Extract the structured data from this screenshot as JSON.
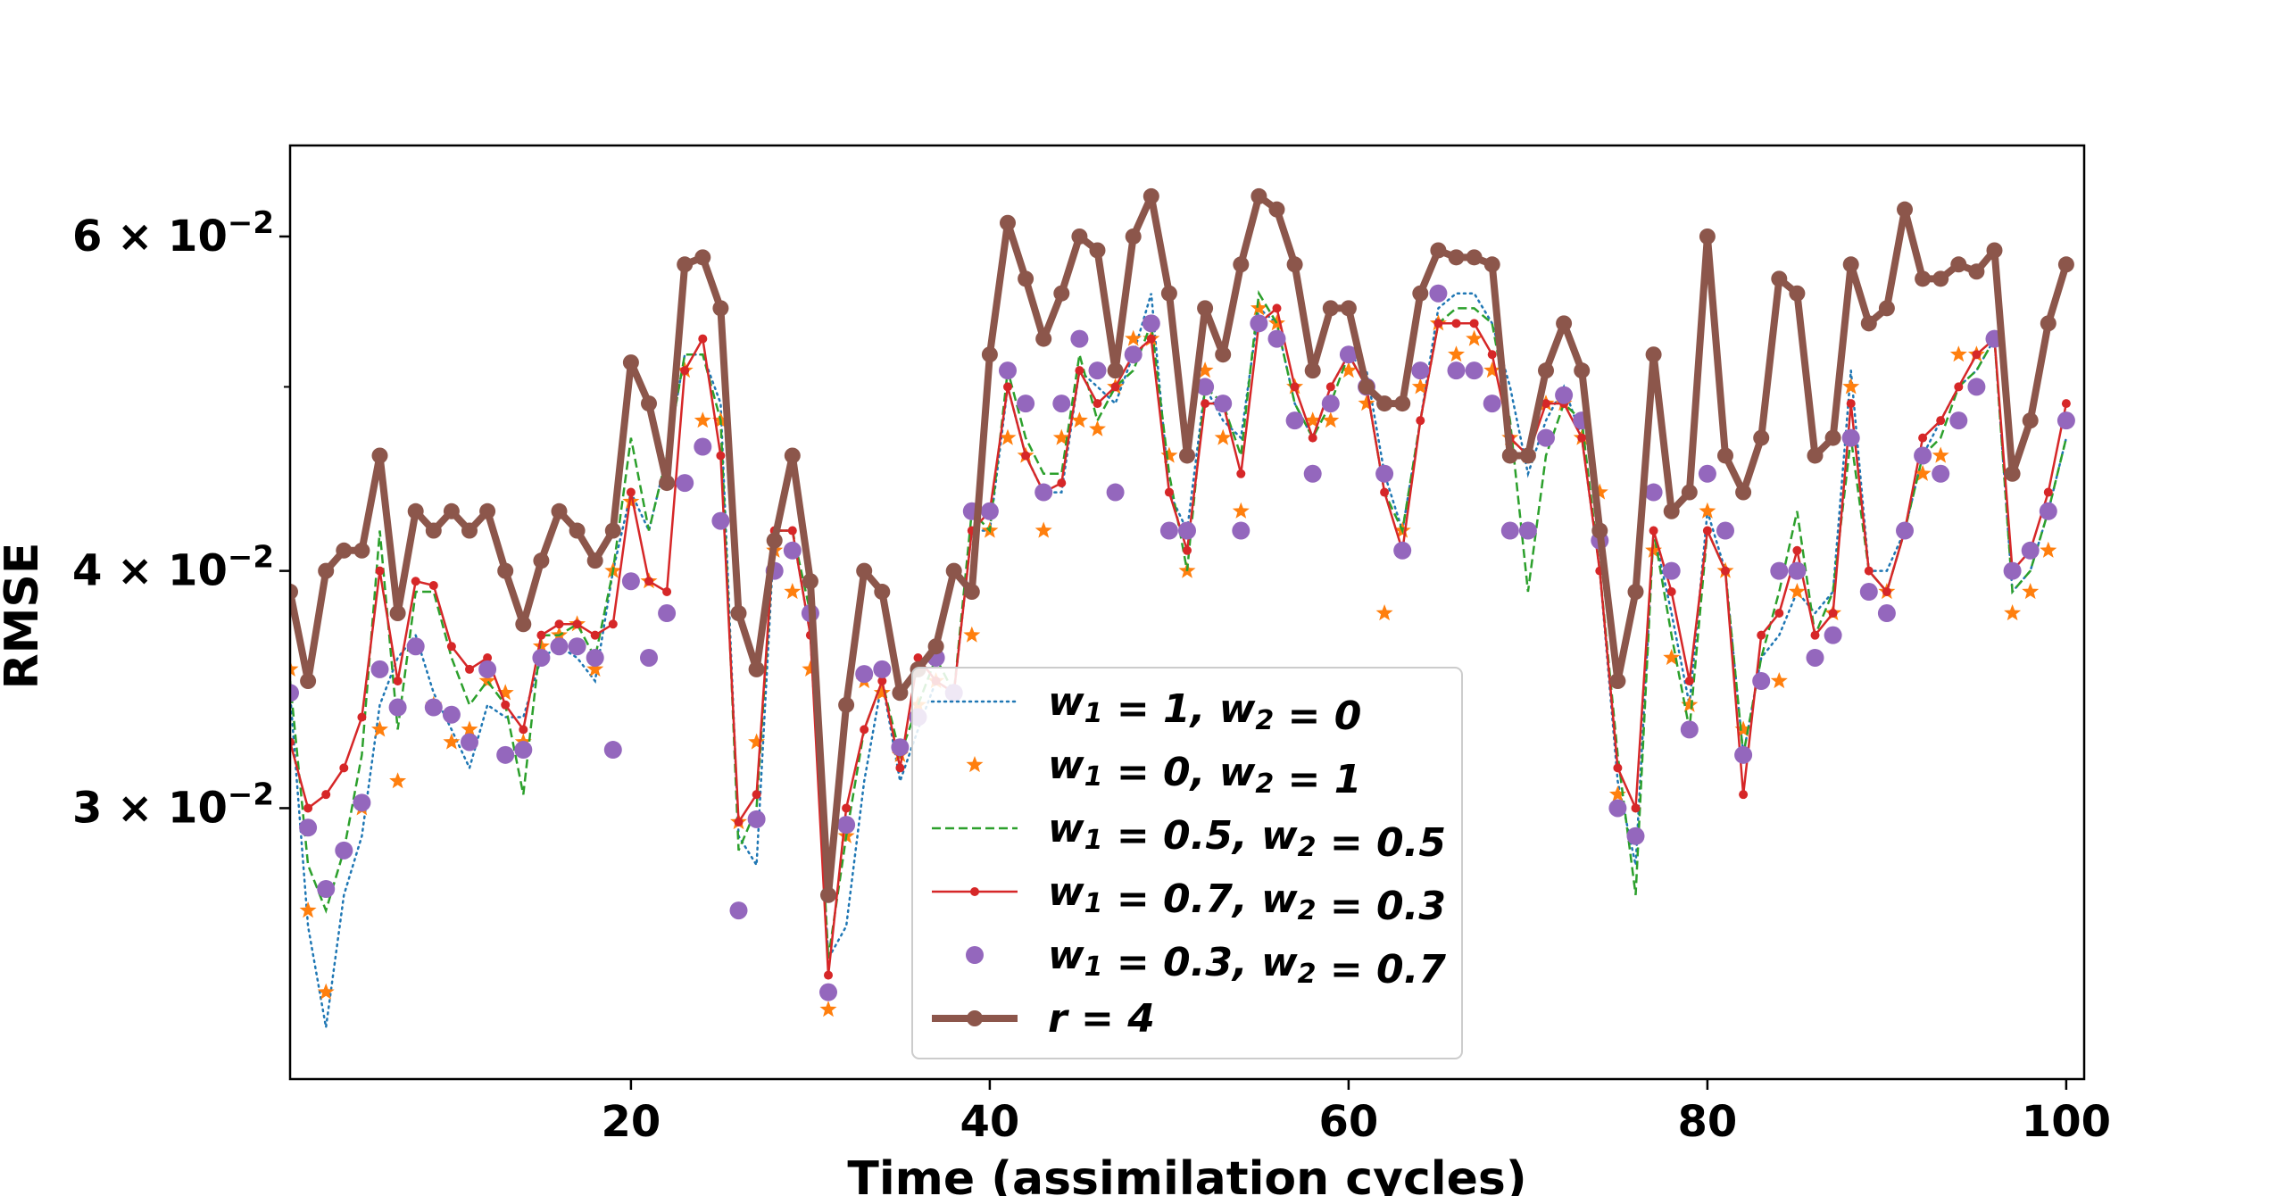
{
  "chart_data": {
    "type": "line",
    "title": "",
    "xlabel": "Time (assimilation cycles)",
    "ylabel": "RMSE",
    "yscale": "log",
    "xlim": [
      1,
      101
    ],
    "ylim": [
      0.0216,
      0.067
    ],
    "x": [
      1,
      2,
      3,
      4,
      5,
      6,
      7,
      8,
      9,
      10,
      11,
      12,
      13,
      14,
      15,
      16,
      17,
      18,
      19,
      20,
      21,
      22,
      23,
      24,
      25,
      26,
      27,
      28,
      29,
      30,
      31,
      32,
      33,
      34,
      35,
      36,
      37,
      38,
      39,
      40,
      41,
      42,
      43,
      44,
      45,
      46,
      47,
      48,
      49,
      50,
      51,
      52,
      53,
      54,
      55,
      56,
      57,
      58,
      59,
      60,
      61,
      62,
      63,
      64,
      65,
      66,
      67,
      68,
      69,
      70,
      71,
      72,
      73,
      74,
      75,
      76,
      77,
      78,
      79,
      80,
      81,
      82,
      83,
      84,
      85,
      86,
      87,
      88,
      89,
      90,
      91,
      92,
      93,
      94,
      95,
      96,
      97,
      98,
      99,
      100
    ],
    "x_ticks": [
      20,
      40,
      60,
      80,
      100
    ],
    "x_tick_labels": [
      "20",
      "40",
      "60",
      "80",
      "100"
    ],
    "y_ticks_major": [
      0.03,
      0.04,
      0.06
    ],
    "y_tick_labels": [
      "3 × 10",
      "4 × 10",
      "6 × 10"
    ],
    "y_tick_exponent": "−2",
    "y_ticks_minor": [
      0.05
    ],
    "legend_position": "lower-center",
    "series": [
      {
        "name": "w1=1, w2=0",
        "label_parts": [
          "w",
          "1",
          " = 1, ",
          "w",
          "2",
          " = 0"
        ],
        "style": "dotted",
        "color": "#1f77b4",
        "values": [
          0.0345,
          0.026,
          0.023,
          0.027,
          0.029,
          0.034,
          0.036,
          0.037,
          0.0345,
          0.033,
          0.0315,
          0.034,
          0.0335,
          0.0335,
          0.036,
          0.0365,
          0.036,
          0.035,
          0.04,
          0.044,
          0.042,
          0.046,
          0.052,
          0.052,
          0.049,
          0.029,
          0.028,
          0.042,
          0.042,
          0.037,
          0.025,
          0.026,
          0.031,
          0.035,
          0.031,
          0.033,
          0.035,
          0.0345,
          0.042,
          0.042,
          0.05,
          0.046,
          0.044,
          0.044,
          0.051,
          0.05,
          0.049,
          0.052,
          0.056,
          0.044,
          0.042,
          0.05,
          0.048,
          0.047,
          0.055,
          0.054,
          0.049,
          0.047,
          0.05,
          0.052,
          0.051,
          0.045,
          0.042,
          0.048,
          0.055,
          0.056,
          0.056,
          0.054,
          0.05,
          0.045,
          0.048,
          0.05,
          0.047,
          0.04,
          0.031,
          0.028,
          0.042,
          0.038,
          0.034,
          0.043,
          0.04,
          0.032,
          0.036,
          0.037,
          0.039,
          0.038,
          0.039,
          0.051,
          0.04,
          0.04,
          0.042,
          0.046,
          0.048,
          0.05,
          0.051,
          0.053,
          0.039,
          0.04,
          0.043,
          0.047
        ]
      },
      {
        "name": "w1=0, w2=1",
        "label_parts": [
          "w",
          "1",
          " = 0, ",
          "w",
          "2",
          " = 1"
        ],
        "style": "star",
        "color": "#ff7f0e",
        "values": [
          0.0355,
          0.0265,
          0.024,
          0.0285,
          0.03,
          0.033,
          0.031,
          0.0365,
          0.034,
          0.0325,
          0.033,
          0.035,
          0.0345,
          0.0325,
          0.0365,
          0.037,
          0.0375,
          0.0355,
          0.04,
          0.0435,
          0.0395,
          0.038,
          0.051,
          0.048,
          0.048,
          0.0295,
          0.0325,
          0.041,
          0.039,
          0.0355,
          0.0235,
          0.029,
          0.035,
          0.0345,
          0.032,
          0.034,
          0.035,
          0.0345,
          0.037,
          0.042,
          0.047,
          0.046,
          0.042,
          0.047,
          0.048,
          0.0475,
          0.05,
          0.053,
          0.053,
          0.046,
          0.04,
          0.051,
          0.047,
          0.043,
          0.055,
          0.054,
          0.05,
          0.048,
          0.048,
          0.051,
          0.049,
          0.038,
          0.042,
          0.05,
          0.054,
          0.052,
          0.053,
          0.051,
          0.047,
          0.046,
          0.049,
          0.049,
          0.047,
          0.044,
          0.0305,
          0.029,
          0.041,
          0.036,
          0.034,
          0.043,
          0.04,
          0.033,
          0.035,
          0.035,
          0.039,
          0.036,
          0.038,
          0.05,
          0.039,
          0.039,
          0.042,
          0.045,
          0.046,
          0.052,
          0.052,
          0.053,
          0.038,
          0.039,
          0.041,
          0.048
        ]
      },
      {
        "name": "w1=0.5, w2=0.5",
        "label_parts": [
          "w",
          "1",
          " = 0.5, ",
          "w",
          "2",
          " = 0.5"
        ],
        "style": "dashed",
        "color": "#2ca02c",
        "values": [
          0.035,
          0.028,
          0.0265,
          0.0285,
          0.032,
          0.042,
          0.033,
          0.039,
          0.039,
          0.036,
          0.034,
          0.035,
          0.034,
          0.0305,
          0.037,
          0.037,
          0.0375,
          0.036,
          0.04,
          0.047,
          0.042,
          0.046,
          0.052,
          0.052,
          0.048,
          0.0285,
          0.03,
          0.042,
          0.042,
          0.038,
          0.025,
          0.029,
          0.033,
          0.035,
          0.032,
          0.034,
          0.036,
          0.0345,
          0.043,
          0.042,
          0.051,
          0.047,
          0.045,
          0.045,
          0.052,
          0.048,
          0.05,
          0.051,
          0.054,
          0.045,
          0.04,
          0.05,
          0.049,
          0.046,
          0.056,
          0.054,
          0.049,
          0.047,
          0.049,
          0.052,
          0.05,
          0.044,
          0.042,
          0.048,
          0.054,
          0.055,
          0.055,
          0.054,
          0.048,
          0.039,
          0.046,
          0.049,
          0.048,
          0.04,
          0.032,
          0.027,
          0.042,
          0.037,
          0.033,
          0.042,
          0.04,
          0.032,
          0.036,
          0.039,
          0.043,
          0.037,
          0.039,
          0.047,
          0.04,
          0.039,
          0.042,
          0.046,
          0.047,
          0.05,
          0.051,
          0.053,
          0.039,
          0.04,
          0.043,
          0.047
        ]
      },
      {
        "name": "w1=0.7, w2=0.3",
        "label_parts": [
          "w",
          "1",
          " = 0.7, ",
          "w",
          "2",
          " = 0.3"
        ],
        "style": "line-dot",
        "color": "#d62728",
        "values": [
          0.0325,
          0.03,
          0.0305,
          0.0315,
          0.0335,
          0.04,
          0.035,
          0.0395,
          0.0393,
          0.0365,
          0.0355,
          0.036,
          0.034,
          0.033,
          0.037,
          0.0375,
          0.0375,
          0.037,
          0.0375,
          0.044,
          0.0395,
          0.039,
          0.051,
          0.053,
          0.046,
          0.0295,
          0.0305,
          0.042,
          0.042,
          0.037,
          0.0245,
          0.03,
          0.033,
          0.035,
          0.0315,
          0.036,
          0.035,
          0.0345,
          0.042,
          0.043,
          0.05,
          0.046,
          0.044,
          0.0445,
          0.051,
          0.049,
          0.05,
          0.052,
          0.053,
          0.044,
          0.041,
          0.049,
          0.049,
          0.045,
          0.054,
          0.055,
          0.05,
          0.047,
          0.05,
          0.052,
          0.05,
          0.044,
          0.041,
          0.048,
          0.054,
          0.054,
          0.054,
          0.052,
          0.047,
          0.046,
          0.049,
          0.049,
          0.047,
          0.04,
          0.0315,
          0.03,
          0.042,
          0.039,
          0.035,
          0.042,
          0.04,
          0.0305,
          0.037,
          0.038,
          0.041,
          0.037,
          0.038,
          0.049,
          0.04,
          0.039,
          0.042,
          0.047,
          0.048,
          0.05,
          0.052,
          0.053,
          0.04,
          0.041,
          0.044,
          0.049
        ]
      },
      {
        "name": "w1=0.3, w2=0.7",
        "label_parts": [
          "w",
          "1",
          " = 0.3, ",
          "w",
          "2",
          " = 0.7"
        ],
        "style": "dot",
        "color": "#9467bd",
        "values": [
          0.0345,
          0.0293,
          0.0272,
          0.0285,
          0.0302,
          0.0355,
          0.0339,
          0.0365,
          0.0339,
          0.0336,
          0.0325,
          0.0355,
          0.032,
          0.0322,
          0.036,
          0.0365,
          0.0365,
          0.036,
          0.0322,
          0.0395,
          0.036,
          0.038,
          0.0445,
          0.0465,
          0.0425,
          0.0265,
          0.0296,
          0.04,
          0.041,
          0.038,
          0.024,
          0.0294,
          0.0353,
          0.0355,
          0.0323,
          0.0335,
          0.036,
          0.0345,
          0.043,
          0.043,
          0.051,
          0.049,
          0.044,
          0.049,
          0.053,
          0.051,
          0.044,
          0.052,
          0.054,
          0.042,
          0.042,
          0.05,
          0.049,
          0.042,
          0.054,
          0.053,
          0.048,
          0.045,
          0.049,
          0.052,
          0.05,
          0.045,
          0.041,
          0.051,
          0.056,
          0.051,
          0.051,
          0.049,
          0.042,
          0.042,
          0.047,
          0.0495,
          0.048,
          0.0415,
          0.03,
          0.029,
          0.044,
          0.04,
          0.033,
          0.045,
          0.042,
          0.032,
          0.035,
          0.04,
          0.04,
          0.036,
          0.037,
          0.047,
          0.039,
          0.038,
          0.042,
          0.046,
          0.045,
          0.048,
          0.05,
          0.053,
          0.04,
          0.041,
          0.043,
          0.048
        ]
      },
      {
        "name": "r=4",
        "label_parts": [
          "r",
          "",
          " = 4",
          "",
          "",
          ""
        ],
        "style": "thick-line-dot",
        "color": "#8c564b",
        "values": [
          0.039,
          0.035,
          0.04,
          0.041,
          0.041,
          0.046,
          0.038,
          0.043,
          0.042,
          0.043,
          0.042,
          0.043,
          0.04,
          0.0375,
          0.0405,
          0.043,
          0.042,
          0.0405,
          0.042,
          0.0515,
          0.049,
          0.0445,
          0.058,
          0.0585,
          0.055,
          0.038,
          0.0355,
          0.0415,
          0.046,
          0.0395,
          0.027,
          0.034,
          0.04,
          0.039,
          0.0345,
          0.0355,
          0.0365,
          0.04,
          0.039,
          0.052,
          0.061,
          0.057,
          0.053,
          0.056,
          0.06,
          0.059,
          0.051,
          0.06,
          0.063,
          0.056,
          0.046,
          0.055,
          0.052,
          0.058,
          0.063,
          0.062,
          0.058,
          0.051,
          0.055,
          0.055,
          0.05,
          0.049,
          0.049,
          0.056,
          0.059,
          0.0585,
          0.0585,
          0.058,
          0.046,
          0.046,
          0.051,
          0.054,
          0.051,
          0.042,
          0.035,
          0.039,
          0.052,
          0.043,
          0.044,
          0.06,
          0.046,
          0.044,
          0.047,
          0.057,
          0.056,
          0.046,
          0.047,
          0.058,
          0.054,
          0.055,
          0.062,
          0.057,
          0.057,
          0.058,
          0.0575,
          0.059,
          0.045,
          0.048,
          0.054,
          0.058
        ]
      }
    ]
  }
}
